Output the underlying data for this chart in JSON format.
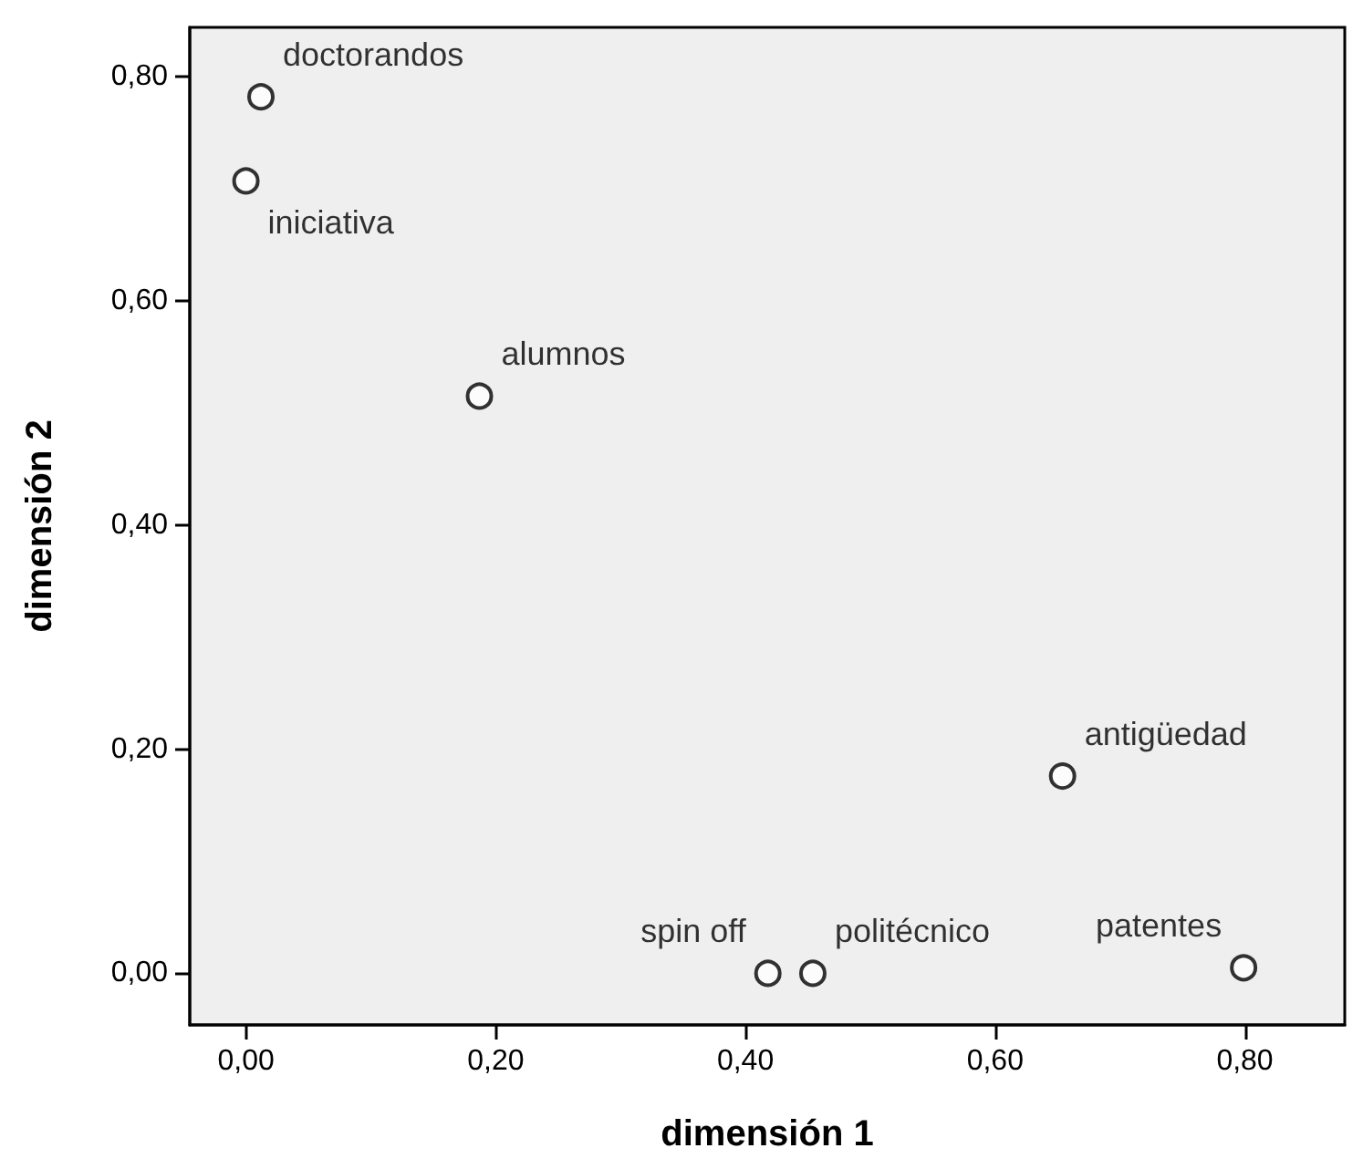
{
  "chart_data": {
    "type": "scatter",
    "xlabel": "dimensión 1",
    "ylabel": "dimensión 2",
    "x": [
      0.012,
      0.0,
      0.187,
      0.654,
      0.418,
      0.454,
      0.799
    ],
    "values": [
      0.782,
      0.707,
      0.515,
      0.176,
      0.0,
      0.0,
      0.005
    ],
    "color": "#000000",
    "marker": "circle",
    "grid": false,
    "xlim": [
      -0.045,
      0.88
    ],
    "ylim": [
      -0.046,
      0.844
    ],
    "xticks": [
      {
        "value": 0,
        "label": "0,00"
      },
      {
        "value": 0.2,
        "label": "0,20"
      },
      {
        "value": 0.4,
        "label": "0,40"
      },
      {
        "value": 0.6,
        "label": "0,60"
      },
      {
        "value": 0.8,
        "label": "0,80"
      }
    ],
    "yticks": [
      {
        "value": 0,
        "label": "0,00"
      },
      {
        "value": 0.2,
        "label": "0,20"
      },
      {
        "value": 0.4,
        "label": "0,40"
      },
      {
        "value": 0.6,
        "label": "0,60"
      },
      {
        "value": 0.8,
        "label": "0,80"
      }
    ],
    "annotations": [
      {
        "text": "doctorandos",
        "x": 0.012,
        "y": 0.782
      },
      {
        "text": "iniciativa",
        "x": 0.0,
        "y": 0.707
      },
      {
        "text": "alumnos",
        "x": 0.187,
        "y": 0.515
      },
      {
        "text": "antigüedad",
        "x": 0.654,
        "y": 0.176
      },
      {
        "text": "spin off",
        "x": 0.418,
        "y": 0.0
      },
      {
        "text": "politécnico",
        "x": 0.454,
        "y": 0.0
      },
      {
        "text": "patentes",
        "x": 0.799,
        "y": 0.005
      }
    ]
  }
}
